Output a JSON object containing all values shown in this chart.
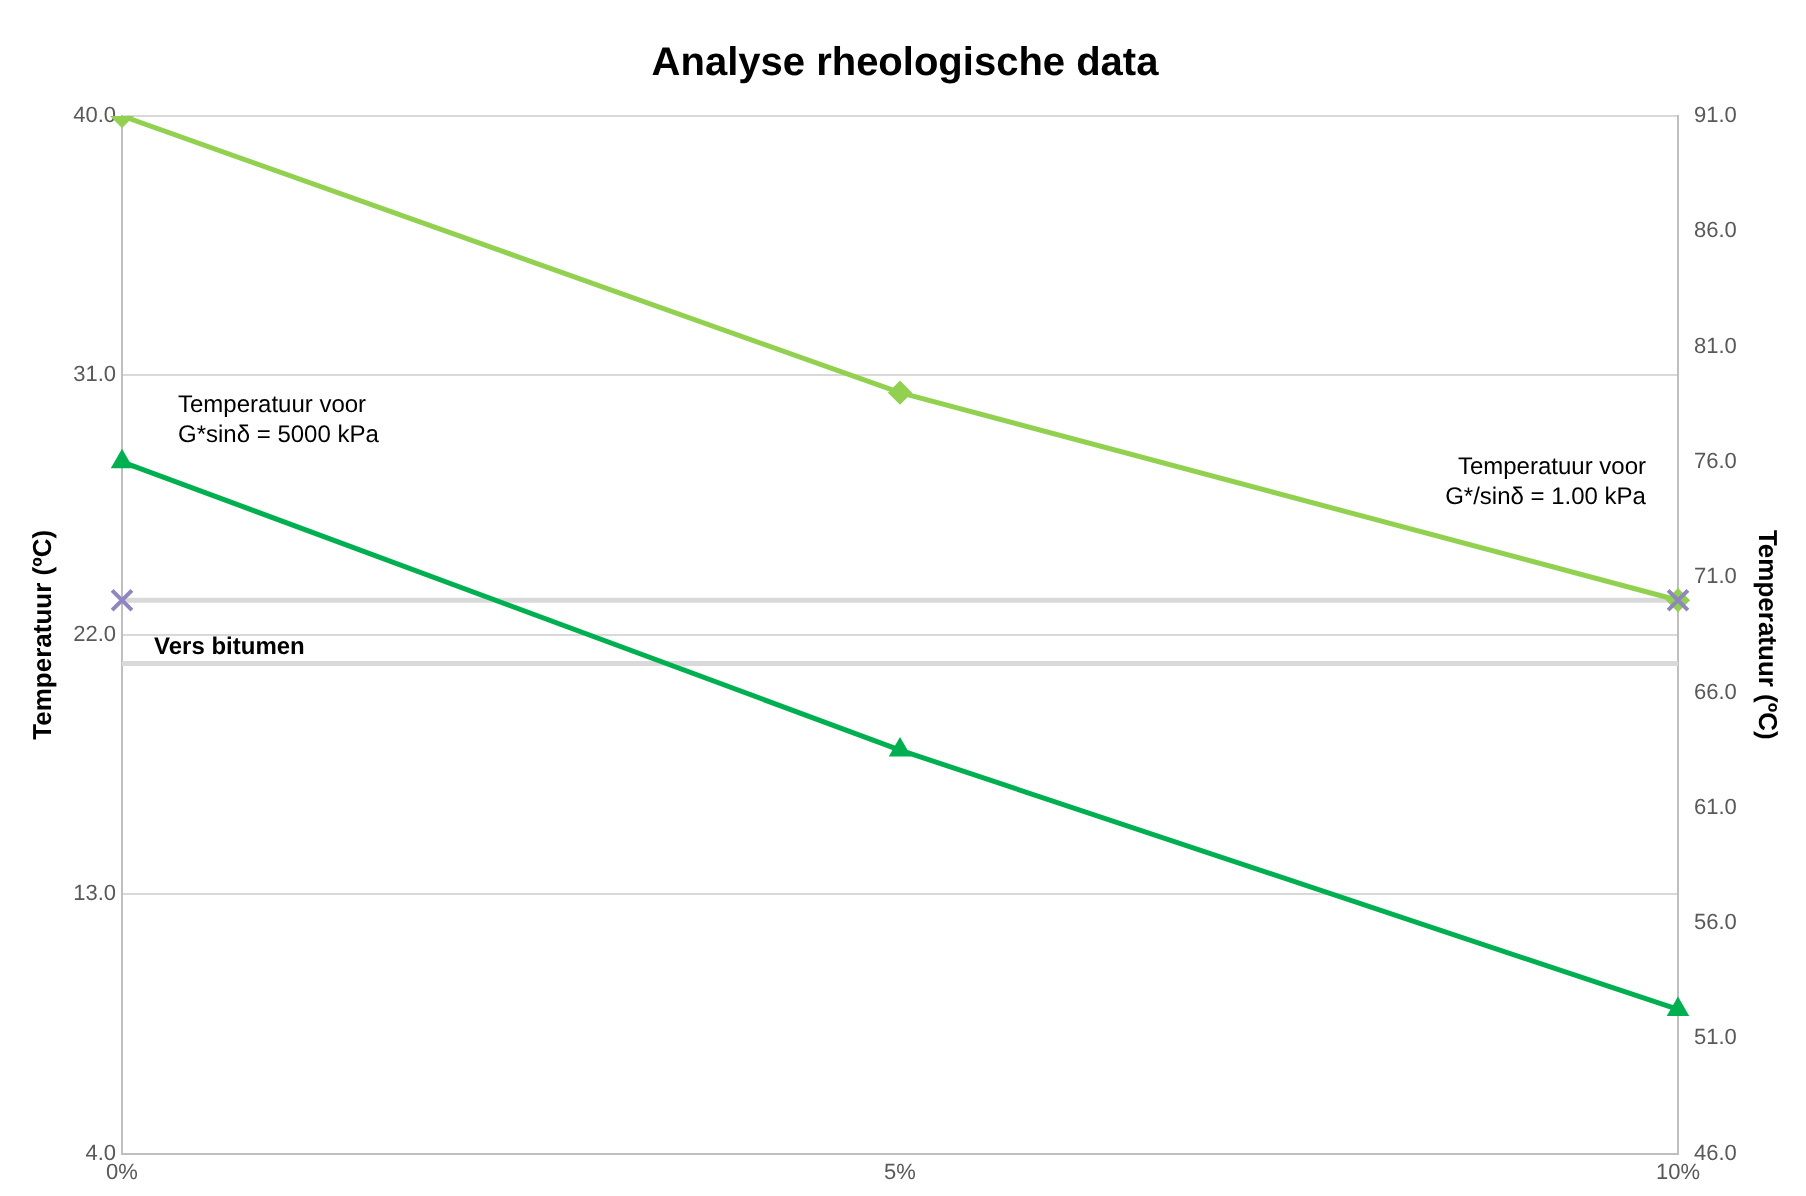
{
  "chart_data": {
    "type": "line",
    "title": "Analyse rheologische data",
    "ylabel": "Temperatuur (ºC)",
    "y2label": "Temperatuur (ºC)",
    "categories": [
      "0%",
      "5%",
      "10%"
    ],
    "series": [
      {
        "name": "Temperatuur voor G*sinδ = 5000 kPa",
        "color": "#00b050",
        "values": [
          28.0,
          18.0,
          9.0
        ],
        "axis": "y",
        "marker": "triangle"
      },
      {
        "name": "Temperatuur voor G*/sinδ = 1.00 kPa",
        "color": "#92d050",
        "values": [
          91.0,
          79.0,
          70.0
        ],
        "axis": "y2",
        "marker": "diamond"
      },
      {
        "type": "scatter",
        "color": "#8f86c0",
        "values": [
          70.0,
          null,
          70.0
        ],
        "axis": "y2",
        "marker": "cross"
      }
    ],
    "ylim": [
      4,
      40
    ],
    "yticks": [
      {
        "value": 4,
        "label": "4.0"
      },
      {
        "value": 13,
        "label": "13.0"
      },
      {
        "value": 22,
        "label": "22.0"
      },
      {
        "value": 31,
        "label": "31.0"
      },
      {
        "value": 40,
        "label": "40.0"
      }
    ],
    "y2lim": [
      46,
      91
    ],
    "y2ticks": [
      {
        "value": 46,
        "label": "46.0"
      },
      {
        "value": 51,
        "label": "51.0"
      },
      {
        "value": 56,
        "label": "56.0"
      },
      {
        "value": 61,
        "label": "61.0"
      },
      {
        "value": 66,
        "label": "66.0"
      },
      {
        "value": 71,
        "label": "71.0"
      },
      {
        "value": 76,
        "label": "76.0"
      },
      {
        "value": 81,
        "label": "81.0"
      },
      {
        "value": 86,
        "label": "86.0"
      },
      {
        "value": 91,
        "label": "91.0"
      }
    ],
    "ref_lines": [
      {
        "axis": "y2",
        "value": 70.0,
        "color": "#d9d9d9"
      },
      {
        "axis": "y",
        "value": 21.0,
        "label": "Vers bitumen",
        "color": "#d9d9d9"
      }
    ],
    "grid": "y",
    "legend": false
  }
}
